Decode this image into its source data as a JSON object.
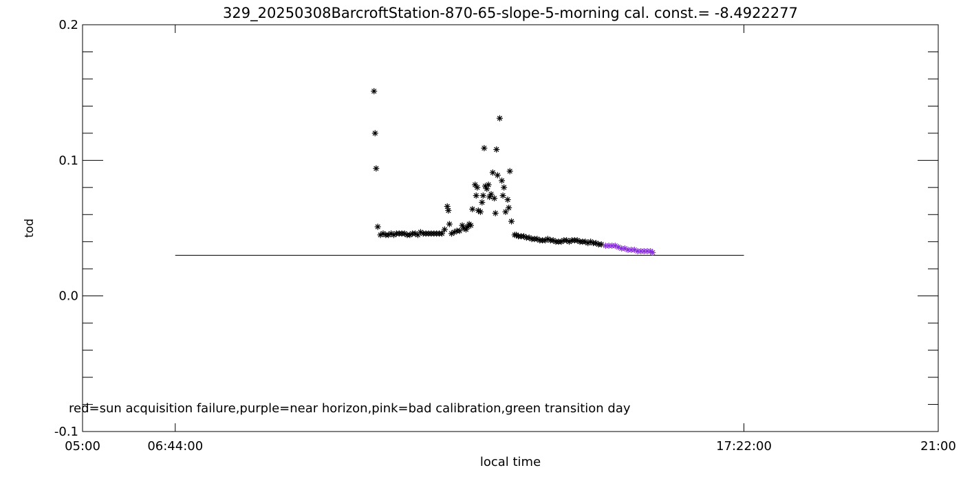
{
  "chart_data": {
    "type": "scatter",
    "title": "329_20250308BarcroftStation-870-65-slope-5-morning cal. const.= -8.4922277",
    "xlabel": "local time",
    "ylabel": "tod",
    "xlim": [
      5.0,
      21.0
    ],
    "ylim": [
      -0.1,
      0.2
    ],
    "x_ticks": [
      {
        "value": 5.0,
        "label": "05:00"
      },
      {
        "value": 6.7333,
        "label": "06:44:00"
      },
      {
        "value": 17.3667,
        "label": "17:22:00"
      },
      {
        "value": 21.0,
        "label": "21:00"
      }
    ],
    "y_ticks": [
      {
        "value": -0.1,
        "label": "-0.1"
      },
      {
        "value": 0.0,
        "label": "0.0"
      },
      {
        "value": 0.1,
        "label": "0.1"
      },
      {
        "value": 0.2,
        "label": "0.2"
      }
    ],
    "annotation": "red=sun acquisition failure,purple=near horizon,pink=bad calibration,green transition day",
    "reference_line": {
      "y": 0.03,
      "x_start": 6.7333,
      "x_end": 17.3667
    },
    "marker": "asterisk",
    "colors": {
      "normal": "#000000",
      "near_horizon": "#8a2be2"
    },
    "series": [
      {
        "color": "#000000",
        "points": [
          [
            10.45,
            0.151
          ],
          [
            10.47,
            0.12
          ],
          [
            10.49,
            0.094
          ],
          [
            10.52,
            0.051
          ],
          [
            10.57,
            0.045
          ],
          [
            10.62,
            0.046
          ],
          [
            10.67,
            0.045
          ],
          [
            10.72,
            0.045
          ],
          [
            10.77,
            0.046
          ],
          [
            10.82,
            0.045
          ],
          [
            10.87,
            0.046
          ],
          [
            10.92,
            0.046
          ],
          [
            10.97,
            0.046
          ],
          [
            11.02,
            0.046
          ],
          [
            11.07,
            0.045
          ],
          [
            11.12,
            0.045
          ],
          [
            11.17,
            0.046
          ],
          [
            11.22,
            0.046
          ],
          [
            11.27,
            0.045
          ],
          [
            11.32,
            0.047
          ],
          [
            11.37,
            0.046
          ],
          [
            11.42,
            0.046
          ],
          [
            11.47,
            0.046
          ],
          [
            11.52,
            0.046
          ],
          [
            11.57,
            0.046
          ],
          [
            11.62,
            0.046
          ],
          [
            11.67,
            0.046
          ],
          [
            11.72,
            0.046
          ],
          [
            11.77,
            0.049
          ],
          [
            11.82,
            0.066
          ],
          [
            11.84,
            0.063
          ],
          [
            11.86,
            0.053
          ],
          [
            11.9,
            0.046
          ],
          [
            11.95,
            0.047
          ],
          [
            12.0,
            0.048
          ],
          [
            12.05,
            0.048
          ],
          [
            12.1,
            0.052
          ],
          [
            12.13,
            0.05
          ],
          [
            12.17,
            0.049
          ],
          [
            12.2,
            0.051
          ],
          [
            12.23,
            0.053
          ],
          [
            12.26,
            0.052
          ],
          [
            12.29,
            0.064
          ],
          [
            12.34,
            0.082
          ],
          [
            12.36,
            0.074
          ],
          [
            12.38,
            0.08
          ],
          [
            12.4,
            0.063
          ],
          [
            12.44,
            0.062
          ],
          [
            12.47,
            0.069
          ],
          [
            12.49,
            0.074
          ],
          [
            12.51,
            0.109
          ],
          [
            12.53,
            0.081
          ],
          [
            12.56,
            0.079
          ],
          [
            12.59,
            0.082
          ],
          [
            12.61,
            0.073
          ],
          [
            12.64,
            0.075
          ],
          [
            12.67,
            0.091
          ],
          [
            12.7,
            0.072
          ],
          [
            12.72,
            0.061
          ],
          [
            12.74,
            0.108
          ],
          [
            12.76,
            0.089
          ],
          [
            12.8,
            0.131
          ],
          [
            12.84,
            0.085
          ],
          [
            12.86,
            0.074
          ],
          [
            12.88,
            0.08
          ],
          [
            12.91,
            0.062
          ],
          [
            12.95,
            0.071
          ],
          [
            12.97,
            0.065
          ],
          [
            12.99,
            0.092
          ],
          [
            13.02,
            0.055
          ],
          [
            13.08,
            0.045
          ],
          [
            13.11,
            0.045
          ],
          [
            13.15,
            0.044
          ],
          [
            13.2,
            0.044
          ],
          [
            13.25,
            0.044
          ],
          [
            13.3,
            0.043
          ],
          [
            13.35,
            0.043
          ],
          [
            13.4,
            0.042
          ],
          [
            13.45,
            0.042
          ],
          [
            13.5,
            0.042
          ],
          [
            13.55,
            0.041
          ],
          [
            13.6,
            0.041
          ],
          [
            13.65,
            0.041
          ],
          [
            13.7,
            0.042
          ],
          [
            13.75,
            0.041
          ],
          [
            13.8,
            0.041
          ],
          [
            13.85,
            0.04
          ],
          [
            13.9,
            0.04
          ],
          [
            13.95,
            0.04
          ],
          [
            14.0,
            0.041
          ],
          [
            14.05,
            0.041
          ],
          [
            14.1,
            0.04
          ],
          [
            14.15,
            0.041
          ],
          [
            14.2,
            0.041
          ],
          [
            14.25,
            0.041
          ],
          [
            14.3,
            0.04
          ],
          [
            14.35,
            0.04
          ],
          [
            14.4,
            0.04
          ],
          [
            14.45,
            0.039
          ],
          [
            14.5,
            0.04
          ],
          [
            14.55,
            0.039
          ],
          [
            14.6,
            0.039
          ],
          [
            14.65,
            0.038
          ],
          [
            14.7,
            0.038
          ]
        ]
      },
      {
        "color": "#8a2be2",
        "points": [
          [
            14.78,
            0.037
          ],
          [
            14.84,
            0.037
          ],
          [
            14.9,
            0.037
          ],
          [
            14.96,
            0.037
          ],
          [
            15.02,
            0.036
          ],
          [
            15.08,
            0.035
          ],
          [
            15.14,
            0.035
          ],
          [
            15.2,
            0.034
          ],
          [
            15.26,
            0.034
          ],
          [
            15.32,
            0.034
          ],
          [
            15.38,
            0.033
          ],
          [
            15.44,
            0.033
          ],
          [
            15.5,
            0.033
          ],
          [
            15.56,
            0.033
          ],
          [
            15.62,
            0.033
          ],
          [
            15.66,
            0.032
          ]
        ]
      }
    ]
  }
}
